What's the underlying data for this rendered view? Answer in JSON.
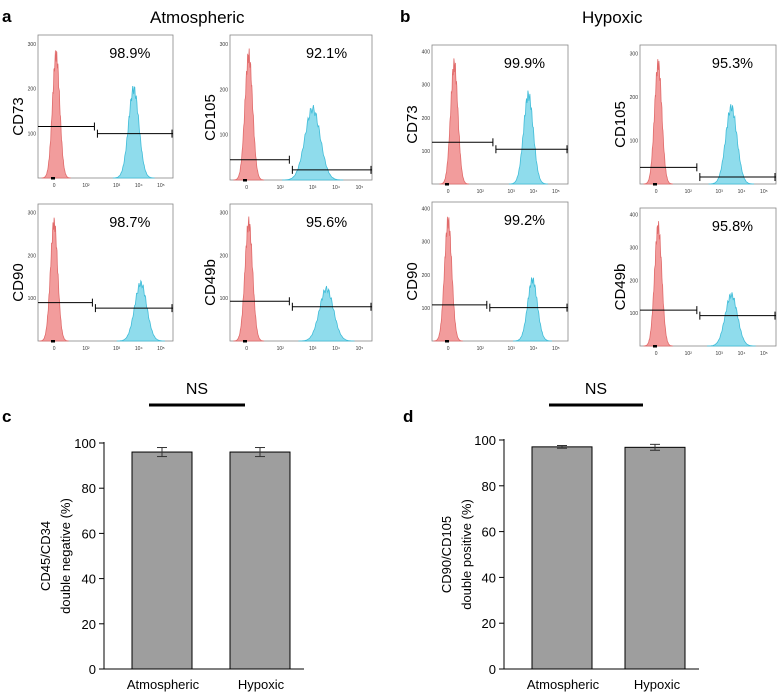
{
  "panel_a": {
    "letter": "a",
    "title": "Atmospheric",
    "histograms": [
      {
        "marker": "CD73",
        "percent": "98.9%",
        "neg_peak_log": 0.1,
        "pos_peak_log": 3.95,
        "pos_height": 0.62,
        "pos_width": 0.26,
        "gate_left_y": 0.36,
        "gate_right_y": 0.31,
        "yticks": [
          "100",
          "200",
          "300"
        ]
      },
      {
        "marker": "CD105",
        "percent": "92.1%",
        "neg_peak_log": 0.1,
        "pos_peak_log": 3.1,
        "pos_height": 0.49,
        "pos_width": 0.36,
        "gate_left_y": 0.14,
        "gate_right_y": 0.07,
        "yticks": [
          "100",
          "200",
          "300"
        ]
      },
      {
        "marker": "CD90",
        "percent": "98.7%",
        "neg_peak_log": 0.0,
        "pos_peak_log": 4.3,
        "pos_height": 0.42,
        "pos_width": 0.3,
        "gate_left_y": 0.28,
        "gate_right_y": 0.24,
        "yticks": [
          "100",
          "200",
          "300"
        ]
      },
      {
        "marker": "CD49b",
        "percent": "95.6%",
        "neg_peak_log": 0.1,
        "pos_peak_log": 3.75,
        "pos_height": 0.38,
        "pos_width": 0.33,
        "gate_left_y": 0.29,
        "gate_right_y": 0.25,
        "yticks": [
          "100",
          "200",
          "300"
        ]
      }
    ]
  },
  "panel_b": {
    "letter": "b",
    "title": "Hypoxic",
    "histograms": [
      {
        "marker": "CD73",
        "percent": "99.9%",
        "neg_peak_log": 0.3,
        "pos_peak_log": 3.95,
        "pos_height": 0.64,
        "pos_width": 0.24,
        "gate_left_y": 0.3,
        "gate_right_y": 0.25,
        "yticks": [
          "100",
          "200",
          "300",
          "400"
        ]
      },
      {
        "marker": "CD105",
        "percent": "95.3%",
        "neg_peak_log": 0.1,
        "pos_peak_log": 3.7,
        "pos_height": 0.55,
        "pos_width": 0.28,
        "gate_left_y": 0.12,
        "gate_right_y": 0.05,
        "yticks": [
          "100",
          "200",
          "300"
        ]
      },
      {
        "marker": "CD90",
        "percent": "99.2%",
        "neg_peak_log": 0.0,
        "pos_peak_log": 4.15,
        "pos_height": 0.44,
        "pos_width": 0.24,
        "gate_left_y": 0.26,
        "gate_right_y": 0.24,
        "yticks": [
          "100",
          "200",
          "300",
          "400"
        ]
      },
      {
        "marker": "CD49b",
        "percent": "95.8%",
        "neg_peak_log": 0.1,
        "pos_peak_log": 3.7,
        "pos_height": 0.37,
        "pos_width": 0.3,
        "gate_left_y": 0.26,
        "gate_right_y": 0.22,
        "yticks": [
          "100",
          "200",
          "300",
          "400"
        ]
      }
    ],
    "x_tick_labels": [
      "0",
      "10²",
      "10³",
      "10⁴",
      "10⁵"
    ]
  },
  "chart_data": [
    {
      "panel": "c",
      "type": "bar",
      "categories": [
        "Atmospheric",
        "Hypoxic"
      ],
      "values": [
        96.0,
        96.0
      ],
      "errors": [
        2.0,
        2.0
      ],
      "ylabel_line1": "CD45/CD34",
      "ylabel_line2": "double negative (%)",
      "ylim": [
        0,
        100
      ],
      "yticks": [
        0,
        20,
        40,
        60,
        80,
        100
      ],
      "significance": "NS",
      "bar_color": "#9e9e9e"
    },
    {
      "panel": "d",
      "type": "bar",
      "categories": [
        "Atmospheric",
        "Hypoxic"
      ],
      "values": [
        97.0,
        96.8
      ],
      "errors": [
        0.6,
        1.3
      ],
      "ylabel_line1": "CD90/CD105",
      "ylabel_line2": "double positive  (%)",
      "ylim": [
        0,
        100
      ],
      "yticks": [
        0,
        20,
        40,
        60,
        80,
        100
      ],
      "significance": "NS",
      "bar_color": "#9e9e9e"
    }
  ],
  "colors": {
    "negative_fill": "#f29c9c",
    "negative_stroke": "#e06a6a",
    "positive_fill": "#8fdcec",
    "positive_stroke": "#3fbcd8"
  }
}
